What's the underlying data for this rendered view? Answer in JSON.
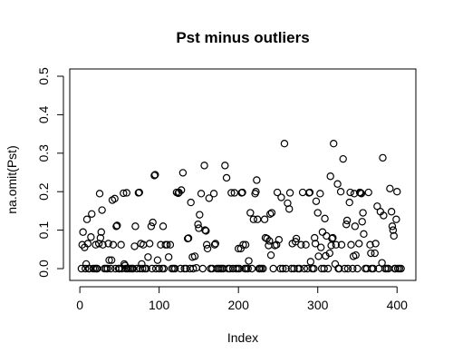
{
  "chart_data": {
    "type": "scatter",
    "title": "Pst minus outliers",
    "xlabel": "Index",
    "ylabel": "na.omit(Pst)",
    "xlim": [
      1,
      410
    ],
    "ylim": [
      0,
      0.5
    ],
    "x_ticks": [
      0,
      100,
      200,
      300,
      400
    ],
    "y_ticks": [
      0.0,
      0.1,
      0.2,
      0.3,
      0.4,
      0.5
    ],
    "x_tick_labels": [
      "0",
      "100",
      "200",
      "300",
      "400"
    ],
    "y_tick_labels": [
      "0.0",
      "0.1",
      "0.2",
      "0.3",
      "0.4",
      "0.5"
    ],
    "marker": "open-circle",
    "grid": false,
    "series": [
      {
        "points": [
          [
            2,
            0.0
          ],
          [
            3,
            0.062
          ],
          [
            4,
            0.095
          ],
          [
            6,
            0.055
          ],
          [
            7,
            0.0
          ],
          [
            8,
            0.012
          ],
          [
            9,
            0.128
          ],
          [
            10,
            0.065
          ],
          [
            11,
            0.0
          ],
          [
            12,
            0.0
          ],
          [
            14,
            0.082
          ],
          [
            15,
            0.142
          ],
          [
            17,
            0.0
          ],
          [
            19,
            0.0
          ],
          [
            20,
            0.062
          ],
          [
            21,
            0.0
          ],
          [
            22,
            0.0
          ],
          [
            24,
            0.065
          ],
          [
            25,
            0.195
          ],
          [
            26,
            0.08
          ],
          [
            27,
            0.095
          ],
          [
            28,
            0.152
          ],
          [
            29,
            0.062
          ],
          [
            31,
            0.0
          ],
          [
            33,
            0.0
          ],
          [
            35,
            0.0
          ],
          [
            36,
            0.065
          ],
          [
            37,
            0.022
          ],
          [
            39,
            0.0
          ],
          [
            40,
            0.022
          ],
          [
            41,
            0.178
          ],
          [
            42,
            0.062
          ],
          [
            44,
            0.182
          ],
          [
            45,
            0.0
          ],
          [
            46,
            0.11
          ],
          [
            47,
            0.112
          ],
          [
            49,
            0.0
          ],
          [
            50,
            0.0
          ],
          [
            52,
            0.062
          ],
          [
            53,
            0.0
          ],
          [
            55,
            0.196
          ],
          [
            56,
            0.012
          ],
          [
            57,
            0.008
          ],
          [
            58,
            0.0
          ],
          [
            59,
            0.197
          ],
          [
            60,
            0.0
          ],
          [
            62,
            0.0
          ],
          [
            64,
            0.0
          ],
          [
            66,
            0.0
          ],
          [
            67,
            0.0
          ],
          [
            69,
            0.058
          ],
          [
            70,
            0.11
          ],
          [
            72,
            0.0
          ],
          [
            74,
            0.197
          ],
          [
            75,
            0.198
          ],
          [
            76,
            0.0
          ],
          [
            77,
            0.065
          ],
          [
            78,
            0.012
          ],
          [
            79,
            0.0
          ],
          [
            80,
            0.062
          ],
          [
            82,
            0.0
          ],
          [
            84,
            0.0
          ],
          [
            86,
            0.03
          ],
          [
            88,
            0.065
          ],
          [
            90,
            0.11
          ],
          [
            91,
            0.0
          ],
          [
            92,
            0.12
          ],
          [
            94,
            0.242
          ],
          [
            95,
            0.244
          ],
          [
            96,
            0.0
          ],
          [
            98,
            0.022
          ],
          [
            100,
            0.0
          ],
          [
            102,
            0.062
          ],
          [
            104,
            0.0
          ],
          [
            105,
            0.11
          ],
          [
            106,
            0.0
          ],
          [
            108,
            0.062
          ],
          [
            110,
            0.062
          ],
          [
            112,
            0.03
          ],
          [
            114,
            0.062
          ],
          [
            116,
            0.0
          ],
          [
            118,
            0.0
          ],
          [
            120,
            0.0
          ],
          [
            122,
            0.198
          ],
          [
            124,
            0.196
          ],
          [
            125,
            0.198
          ],
          [
            127,
            0.0
          ],
          [
            128,
            0.204
          ],
          [
            130,
            0.249
          ],
          [
            132,
            0.0
          ],
          [
            134,
            0.0
          ],
          [
            136,
            0.078
          ],
          [
            137,
            0.079
          ],
          [
            139,
            0.0
          ],
          [
            140,
            0.172
          ],
          [
            142,
            0.03
          ],
          [
            143,
            0.0
          ],
          [
            145,
            0.032
          ],
          [
            147,
            0.002
          ],
          [
            149,
            0.115
          ],
          [
            150,
            0.105
          ],
          [
            151,
            0.14
          ],
          [
            153,
            0.195
          ],
          [
            155,
            0.0
          ],
          [
            157,
            0.268
          ],
          [
            158,
            0.1
          ],
          [
            159,
            0.098
          ],
          [
            160,
            0.062
          ],
          [
            161,
            0.052
          ],
          [
            163,
            0.183
          ],
          [
            165,
            0.0
          ],
          [
            167,
            0.0
          ],
          [
            169,
            0.195
          ],
          [
            170,
            0.062
          ],
          [
            171,
            0.065
          ],
          [
            173,
            0.0
          ],
          [
            175,
            0.0
          ],
          [
            177,
            0.0
          ],
          [
            179,
            0.0
          ],
          [
            181,
            0.0
          ],
          [
            183,
            0.268
          ],
          [
            185,
            0.236
          ],
          [
            187,
            0.0
          ],
          [
            189,
            0.0
          ],
          [
            191,
            0.197
          ],
          [
            193,
            0.0
          ],
          [
            195,
            0.197
          ],
          [
            197,
            0.0
          ],
          [
            199,
            0.0
          ],
          [
            200,
            0.052
          ],
          [
            201,
            0.0
          ],
          [
            203,
            0.052
          ],
          [
            204,
            0.197
          ],
          [
            205,
            0.198
          ],
          [
            206,
            0.062
          ],
          [
            208,
            0.0
          ],
          [
            209,
            0.062
          ],
          [
            210,
            0.0
          ],
          [
            212,
            0.0
          ],
          [
            213,
            0.02
          ],
          [
            215,
            0.145
          ],
          [
            217,
            0.0
          ],
          [
            219,
            0.128
          ],
          [
            221,
            0.195
          ],
          [
            222,
            0.2
          ],
          [
            223,
            0.23
          ],
          [
            224,
            0.128
          ],
          [
            226,
            0.0
          ],
          [
            227,
            0.0
          ],
          [
            229,
            0.0
          ],
          [
            231,
            0.0
          ],
          [
            233,
            0.128
          ],
          [
            234,
            0.08
          ],
          [
            236,
            0.078
          ],
          [
            238,
            0.06
          ],
          [
            239,
            0.072
          ],
          [
            240,
            0.142
          ],
          [
            241,
            0.035
          ],
          [
            242,
            0.145
          ],
          [
            244,
            0.0
          ],
          [
            246,
            0.06
          ],
          [
            248,
            0.062
          ],
          [
            249,
            0.198
          ],
          [
            251,
            0.075
          ],
          [
            253,
            0.0
          ],
          [
            254,
            0.185
          ],
          [
            256,
            0.0
          ],
          [
            258,
            0.325
          ],
          [
            260,
            0.0
          ],
          [
            262,
            0.17
          ],
          [
            264,
            0.155
          ],
          [
            265,
            0.197
          ],
          [
            267,
            0.0
          ],
          [
            268,
            0.065
          ],
          [
            270,
            0.0
          ],
          [
            272,
            0.07
          ],
          [
            273,
            0.078
          ],
          [
            275,
            0.0
          ],
          [
            277,
            0.0
          ],
          [
            279,
            0.062
          ],
          [
            281,
            0.198
          ],
          [
            283,
            0.0
          ],
          [
            285,
            0.062
          ],
          [
            287,
            0.0
          ],
          [
            289,
            0.197
          ],
          [
            290,
            0.198
          ],
          [
            291,
            0.018
          ],
          [
            293,
            0.0
          ],
          [
            295,
            0.0
          ],
          [
            296,
            0.08
          ],
          [
            297,
            0.065
          ],
          [
            298,
            0.175
          ],
          [
            300,
            0.145
          ],
          [
            301,
            0.032
          ],
          [
            303,
            0.195
          ],
          [
            304,
            0.055
          ],
          [
            305,
            0.0
          ],
          [
            306,
            0.095
          ],
          [
            308,
            0.0
          ],
          [
            309,
            0.13
          ],
          [
            310,
            0.033
          ],
          [
            311,
            0.085
          ],
          [
            313,
            0.0
          ],
          [
            315,
            0.04
          ],
          [
            316,
            0.24
          ],
          [
            317,
            0.06
          ],
          [
            318,
            0.078
          ],
          [
            319,
            0.08
          ],
          [
            320,
            0.325
          ],
          [
            322,
            0.012
          ],
          [
            323,
            0.062
          ],
          [
            325,
            0.22
          ],
          [
            326,
            0.0
          ],
          [
            327,
            0.0
          ],
          [
            329,
            0.2
          ],
          [
            330,
            0.062
          ],
          [
            332,
            0.285
          ],
          [
            334,
            0.0
          ],
          [
            336,
            0.115
          ],
          [
            337,
            0.125
          ],
          [
            338,
            0.0
          ],
          [
            340,
            0.172
          ],
          [
            341,
            0.198
          ],
          [
            342,
            0.062
          ],
          [
            344,
            0.0
          ],
          [
            345,
            0.032
          ],
          [
            346,
            0.195
          ],
          [
            347,
            0.11
          ],
          [
            348,
            0.035
          ],
          [
            350,
            0.0
          ],
          [
            352,
            0.065
          ],
          [
            353,
            0.198
          ],
          [
            354,
            0.197
          ],
          [
            355,
            0.195
          ],
          [
            356,
            0.122
          ],
          [
            357,
            0.145
          ],
          [
            358,
            0.09
          ],
          [
            360,
            0.0
          ],
          [
            362,
            0.0
          ],
          [
            364,
            0.198
          ],
          [
            366,
            0.062
          ],
          [
            367,
            0.04
          ],
          [
            368,
            0.0
          ],
          [
            370,
            0.0
          ],
          [
            372,
            0.04
          ],
          [
            373,
            0.065
          ],
          [
            375,
            0.162
          ],
          [
            377,
            0.0
          ],
          [
            379,
            0.148
          ],
          [
            381,
            0.015
          ],
          [
            382,
            0.288
          ],
          [
            383,
            0.138
          ],
          [
            385,
            0.0
          ],
          [
            387,
            0.0
          ],
          [
            389,
            0.0
          ],
          [
            391,
            0.208
          ],
          [
            393,
            0.148
          ],
          [
            394,
            0.11
          ],
          [
            395,
            0.1
          ],
          [
            396,
            0.085
          ],
          [
            397,
            0.0
          ],
          [
            398,
            0.0
          ],
          [
            399,
            0.128
          ],
          [
            400,
            0.2
          ],
          [
            401,
            0.0
          ],
          [
            403,
            0.0
          ],
          [
            405,
            0.0
          ]
        ]
      }
    ]
  }
}
